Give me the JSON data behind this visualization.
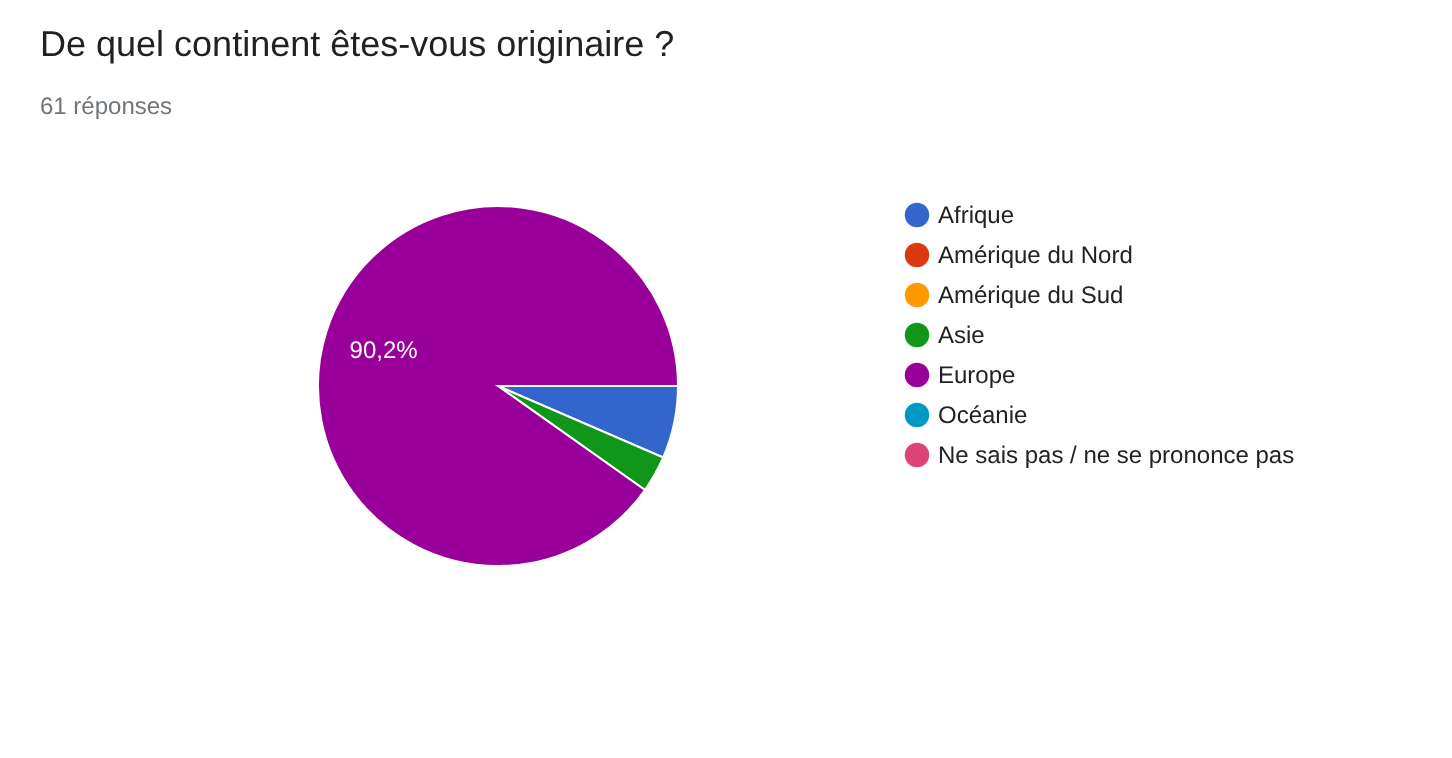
{
  "chart_data": {
    "type": "pie",
    "title": "De quel continent êtes-vous originaire ?",
    "subtitle": "61 réponses",
    "categories": [
      "Afrique",
      "Amérique du Nord",
      "Amérique du Sud",
      "Asie",
      "Europe",
      "Océanie",
      "Ne sais pas / ne se prononce pas"
    ],
    "values": [
      6.5,
      0,
      0,
      3.3,
      90.2,
      0,
      0
    ],
    "colors": [
      "#3366cc",
      "#dc3912",
      "#ff9900",
      "#109618",
      "#990099",
      "#0099c6",
      "#dd4477"
    ],
    "value_labels": [
      null,
      null,
      null,
      null,
      "90,2%",
      null,
      null
    ],
    "legend": "right"
  }
}
